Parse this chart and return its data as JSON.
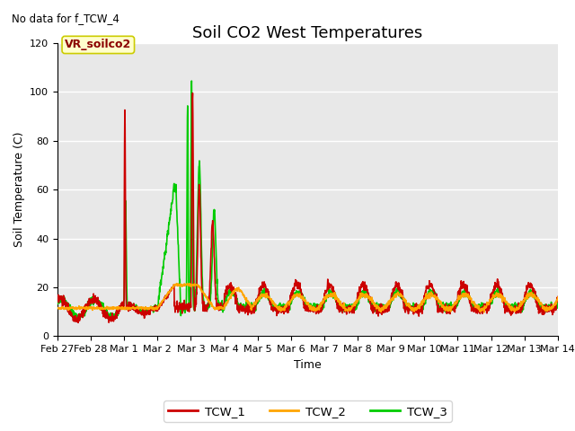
{
  "title": "Soil CO2 West Temperatures",
  "subtitle": "No data for f_TCW_4",
  "ylabel": "Soil Temperature (C)",
  "xlabel": "Time",
  "annotation_label": "VR_soilco2",
  "ylim": [
    0,
    120
  ],
  "xlim": [
    0,
    15
  ],
  "tick_positions": [
    0,
    1,
    2,
    3,
    4,
    5,
    6,
    7,
    8,
    9,
    10,
    11,
    12,
    13,
    14,
    15
  ],
  "tick_labels": [
    "Feb 27",
    "Feb 28",
    "Mar 1",
    "Mar 2",
    "Mar 3",
    "Mar 4",
    "Mar 5",
    "Mar 6",
    "Mar 7",
    "Mar 8",
    "Mar 9",
    "Mar 10",
    "Mar 11",
    "Mar 12",
    "Mar 13",
    "Mar 14"
  ],
  "yticks": [
    0,
    20,
    40,
    60,
    80,
    100,
    120
  ],
  "series": {
    "TCW_1": {
      "color": "#cc0000",
      "linewidth": 1.2
    },
    "TCW_2": {
      "color": "#ffa500",
      "linewidth": 1.2
    },
    "TCW_3": {
      "color": "#00cc00",
      "linewidth": 1.2
    }
  },
  "legend_entries": [
    {
      "label": "TCW_1",
      "color": "#cc0000"
    },
    {
      "label": "TCW_2",
      "color": "#ffa500"
    },
    {
      "label": "TCW_3",
      "color": "#00cc00"
    }
  ],
  "background_color": "#e8e8e8",
  "title_fontsize": 13,
  "label_fontsize": 9,
  "tick_fontsize": 8,
  "annotation_fontsize": 9
}
